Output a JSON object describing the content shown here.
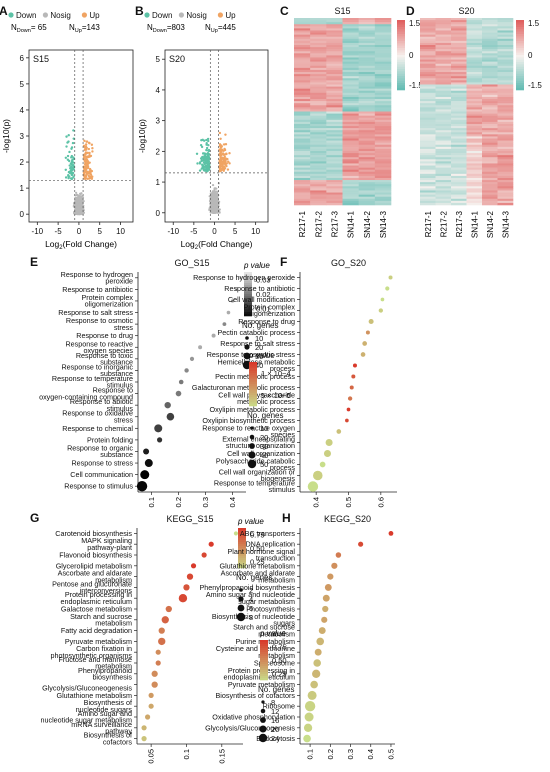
{
  "panels": {
    "A": {
      "letter": "A",
      "sample": "S15",
      "n_down_label": "N",
      "n_down_sub": "Down",
      "n_down_value": "= 65",
      "n_up_label": "N",
      "n_up_sub": "Up",
      "n_up_value": "=143"
    },
    "B": {
      "letter": "B",
      "sample": "S20",
      "n_down_label": "N",
      "n_down_sub": "Down",
      "n_down_value": "=803",
      "n_up_label": "N",
      "n_up_sub": "Up",
      "n_up_value": "=445"
    },
    "C": {
      "letter": "C",
      "title": "S15"
    },
    "D": {
      "letter": "D",
      "title": "S20"
    },
    "E": {
      "letter": "E",
      "title": "GO_S15"
    },
    "F": {
      "letter": "F",
      "title": "GO_S20"
    },
    "G": {
      "letter": "G",
      "title": "KEGG_S15"
    },
    "H": {
      "letter": "H",
      "title": "KEGG_S20"
    }
  },
  "volcano_legend": [
    "Down",
    "Nosig",
    "Up"
  ],
  "volcano_xlabel_pre": "Log",
  "volcano_xlabel_sub": "2",
  "volcano_xlabel_post": "(Fold Change)",
  "volcano_ylabel": "-log10(p)",
  "heatmap_scale": {
    "max": "1.5",
    "mid": "0",
    "min": "-1.5"
  },
  "heatmap_samples": [
    "R217-1",
    "R217-2",
    "R217-3",
    "SN14-1",
    "SN14-2",
    "SN14-3"
  ],
  "legend_texts": {
    "pvalue": "p value",
    "genes": "No. genes"
  },
  "colors": {
    "down": "#5cc2a6",
    "up": "#f0a463",
    "nosig": "#b8b8b8",
    "heat_high": "#e0605f",
    "heat_mid": "#f6f1ee",
    "heat_low": "#5ab9b0",
    "dot_high": "#d93a2b",
    "dot_low": "#c8de8a"
  },
  "chart_data": [
    {
      "panel": "A",
      "type": "scatter",
      "xlabel": "Log2(Fold Change)",
      "ylabel": "-log10(p)",
      "xlim": [
        -12,
        13
      ],
      "ylim": [
        -0.3,
        6.3
      ],
      "xticks": [
        -10,
        -5,
        0,
        5,
        10
      ],
      "yticks": [
        0,
        1,
        2,
        3,
        4,
        5,
        6
      ],
      "thresholds": {
        "x": [
          -1,
          1
        ],
        "y": 1.3
      },
      "series": [
        {
          "name": "Down",
          "count": 65
        },
        {
          "name": "Nosig"
        },
        {
          "name": "Up",
          "count": 143
        }
      ]
    },
    {
      "panel": "B",
      "type": "scatter",
      "xlabel": "Log2(Fold Change)",
      "ylabel": "-log10(p)",
      "xlim": [
        -12,
        13
      ],
      "ylim": [
        -0.3,
        5.3
      ],
      "xticks": [
        -10,
        -5,
        0,
        5,
        10
      ],
      "yticks": [
        0,
        1,
        2,
        3,
        4,
        5
      ],
      "thresholds": {
        "x": [
          -1,
          1
        ],
        "y": 1.3
      },
      "series": [
        {
          "name": "Down",
          "count": 803
        },
        {
          "name": "Nosig"
        },
        {
          "name": "Up",
          "count": 445
        }
      ]
    },
    {
      "panel": "C",
      "type": "heatmap",
      "title": "S15",
      "columns": [
        "R217-1",
        "R217-2",
        "R217-3",
        "SN14-1",
        "SN14-2",
        "SN14-3"
      ],
      "range": [
        -1.5,
        1.5
      ]
    },
    {
      "panel": "D",
      "type": "heatmap",
      "title": "S20",
      "columns": [
        "R217-1",
        "R217-2",
        "R217-3",
        "SN14-1",
        "SN14-2",
        "SN14-3"
      ],
      "range": [
        -1.5,
        1.5
      ]
    },
    {
      "panel": "E",
      "type": "scatter",
      "title": "GO_S15",
      "xticks": [
        0.1,
        0.2,
        0.3,
        0.4
      ],
      "xlim": [
        0.05,
        0.45
      ],
      "pvalue_ticks": [
        "0.03",
        "0.02",
        "0.01"
      ],
      "size_ticks": [
        "10",
        "20",
        "30",
        "40"
      ],
      "categories": [
        "Response to hydrogen peroxide",
        "Response to antibiotic",
        "Protein complex oligomerization",
        "Response to salt stress",
        "Response to osmotic stress",
        "Response to drug",
        "Response to reactive oxygen species",
        "Response to toxic substance",
        "Response to inorganic substance",
        "Response to temperature stimulus",
        "Response to oxygen-containing compound",
        "Response to abiotic stimulus",
        "Response to oxidative stress",
        "Response to chemical",
        "Protein folding",
        "Response to organic substance",
        "Response to stress",
        "Cell communication",
        "Response to stimulus"
      ],
      "x": [
        0.43,
        0.415,
        0.4,
        0.385,
        0.37,
        0.33,
        0.28,
        0.25,
        0.23,
        0.21,
        0.2,
        0.16,
        0.17,
        0.125,
        0.13,
        0.08,
        0.09,
        0.075,
        0.065
      ],
      "genes": [
        6,
        6,
        6,
        8,
        9,
        10,
        10,
        11,
        12,
        13,
        18,
        22,
        28,
        30,
        16,
        20,
        30,
        35,
        42
      ],
      "pvalue": [
        0.03,
        0.028,
        0.022,
        0.025,
        0.02,
        0.025,
        0.025,
        0.022,
        0.02,
        0.018,
        0.018,
        0.015,
        0.01,
        0.01,
        0.008,
        0.005,
        0.003,
        0.001,
        0.002
      ]
    },
    {
      "panel": "F",
      "type": "scatter",
      "title": "GO_S20",
      "xticks": [
        0.4,
        0.5,
        0.6
      ],
      "xlim": [
        0.35,
        0.65
      ],
      "pvalue_ticks": [
        "1 × 10−4",
        "5 × 10−5"
      ],
      "size_ticks": [
        "10",
        "20",
        "30",
        "40",
        "50"
      ],
      "categories": [
        "Response to hydrogen peroxide",
        "Response to antibiotic",
        "Cell wall modification",
        "Protein complex oligomerization",
        "Response to drug",
        "Pectin catabolic process",
        "Response to salt stress",
        "Response to osmotic stress",
        "Hemicellulose metabolic process",
        "Pectin metabolic process",
        "Galacturonan metabolic process",
        "Cell wall polysaccharide metabolic process",
        "Oxylipin metabolic process",
        "Oxylipin biosynthetic process",
        "Response to reactive oxygen species",
        "External encapsulating structure organization",
        "Cell wall organization",
        "Polysaccharide catabolic process",
        "Cell wall organization or biogenesis",
        "Response to temperature stimulus"
      ],
      "x": [
        0.63,
        0.62,
        0.605,
        0.6,
        0.57,
        0.56,
        0.55,
        0.545,
        0.52,
        0.515,
        0.51,
        0.505,
        0.5,
        0.495,
        0.47,
        0.44,
        0.435,
        0.42,
        0.405,
        0.39
      ],
      "genes": [
        12,
        13,
        10,
        14,
        18,
        12,
        16,
        16,
        12,
        12,
        12,
        14,
        10,
        10,
        16,
        30,
        30,
        22,
        45,
        50
      ],
      "pvalue": [
        0.00012,
        0.00013,
        0.00013,
        0.00012,
        0.00011,
        8e-05,
        0.0001,
        0.0001,
        2e-05,
        4e-05,
        5e-05,
        6e-05,
        2e-05,
        3e-05,
        0.00011,
        0.00012,
        0.00012,
        0.00013,
        0.00012,
        0.00013
      ]
    },
    {
      "panel": "G",
      "type": "scatter",
      "title": "KEGG_S15",
      "xticks": [
        0.05,
        0.1,
        0.15
      ],
      "xlim": [
        0.03,
        0.18
      ],
      "pvalue_ticks": [
        "0.75",
        "0.50",
        "0.25"
      ],
      "size_ticks": [
        "2",
        "4",
        "6",
        "8"
      ],
      "categories": [
        "Carotenoid biosynthesis",
        "MAPK signaling pathway-plant",
        "Flavonoid biosynthesis",
        "Glycerolipid metabolism",
        "Ascorbate and aldarate metabolism",
        "Pentose and glucuronate interconversions",
        "Protein processing in endoplasmic reticulum",
        "Galactose metabolism",
        "Starch and sucrose metabolism",
        "Fatty acid degradation",
        "Pyruvate metabolism",
        "Carbon fixation in photosynthetic organisms",
        "Fructose and mannose metabolism",
        "Phenylpropanoid biosynthesis",
        "Glycolysis/Gluconeogenesis",
        "Glutathione metabolism",
        "Biosynthesis of nucleotide sugars",
        "Amino sugar and nucleotide sugar metabolism",
        "mRNA surveillance pathway",
        "Biosynthesis of cofactors"
      ],
      "x": [
        0.17,
        0.135,
        0.125,
        0.11,
        0.105,
        0.1,
        0.095,
        0.075,
        0.07,
        0.065,
        0.065,
        0.06,
        0.06,
        0.055,
        0.055,
        0.05,
        0.05,
        0.045,
        0.04,
        0.04
      ],
      "genes": [
        2,
        3,
        3,
        3,
        4,
        4,
        6,
        4,
        5,
        4,
        5,
        3,
        3,
        4,
        4,
        3,
        3,
        3,
        3,
        3
      ],
      "pvalue": [
        0.9,
        0.3,
        0.35,
        0.3,
        0.35,
        0.4,
        0.35,
        0.5,
        0.45,
        0.55,
        0.5,
        0.6,
        0.55,
        0.6,
        0.6,
        0.65,
        0.7,
        0.7,
        0.75,
        0.8
      ]
    },
    {
      "panel": "H",
      "type": "scatter",
      "title": "KEGG_S20",
      "xticks": [
        0.1,
        0.2,
        0.3,
        0.4,
        0.5
      ],
      "xlim": [
        0.05,
        0.52
      ],
      "pvalue_ticks": [
        "0.75",
        "0.50",
        "0.25"
      ],
      "size_ticks": [
        "8",
        "12",
        "16",
        "20",
        "24"
      ],
      "categories": [
        "ABC transporters",
        "DNA replication",
        "Plant hormone signal transduction",
        "Glutathione metabolism",
        "Ascorbate and aldarate metabolism",
        "Phenylpropanoid biosynthesis",
        "Amino sugar and nucleotide sugar metabolism",
        "Photosynthesis",
        "Biosynthesis of nucleotide sugars",
        "Starch and sucrose metabolism",
        "Purine metabolism",
        "Cysteine and methionine metabolism",
        "Spliceosome",
        "Protein processing in endoplasmic reticulum",
        "Pyruvate metabolism",
        "Biosynthesis of cofactors",
        "Ribosome",
        "Oxidative phosphorylation",
        "Glycolysis/Gluconeogenesis",
        "Endocytosis"
      ],
      "x": [
        0.5,
        0.35,
        0.24,
        0.22,
        0.2,
        0.19,
        0.18,
        0.175,
        0.17,
        0.16,
        0.15,
        0.14,
        0.135,
        0.13,
        0.12,
        0.11,
        0.1,
        0.095,
        0.09,
        0.085
      ],
      "genes": [
        8,
        9,
        10,
        12,
        12,
        14,
        14,
        12,
        12,
        14,
        16,
        14,
        16,
        18,
        16,
        20,
        24,
        20,
        18,
        16
      ],
      "pvalue": [
        0.02,
        0.1,
        0.35,
        0.45,
        0.5,
        0.5,
        0.55,
        0.6,
        0.55,
        0.6,
        0.65,
        0.6,
        0.7,
        0.65,
        0.7,
        0.75,
        0.8,
        0.8,
        0.8,
        0.85
      ]
    }
  ]
}
